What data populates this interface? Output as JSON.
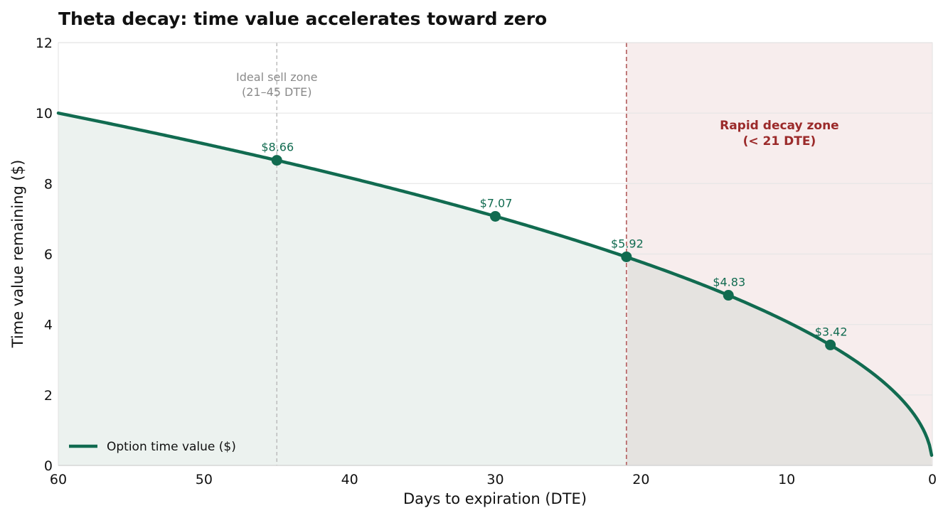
{
  "chart_data": {
    "type": "line",
    "title": "Theta decay: time value accelerates toward zero",
    "xlabel": "Days to expiration (DTE)",
    "ylabel": "Time value remaining ($)",
    "xlim": [
      60,
      0
    ],
    "ylim": [
      0,
      12
    ],
    "x_reversed": true,
    "x_ticks": [
      60,
      50,
      40,
      30,
      20,
      10,
      0
    ],
    "y_ticks": [
      0,
      2,
      4,
      6,
      8,
      10,
      12
    ],
    "grid": "horizontal",
    "legend_position": "bottom-left",
    "series": [
      {
        "name": "Option time value ($)",
        "color": "#116b50",
        "curve": "sqrt",
        "x": [
          60,
          45,
          30,
          21,
          14,
          7,
          0.05
        ],
        "y": [
          10.0,
          8.66,
          7.07,
          5.92,
          4.83,
          3.42,
          0.29
        ]
      }
    ],
    "markers": [
      {
        "x": 45,
        "y": 8.66,
        "label": "$8.66"
      },
      {
        "x": 30,
        "y": 7.07,
        "label": "$7.07"
      },
      {
        "x": 21,
        "y": 5.92,
        "label": "$5.92"
      },
      {
        "x": 14,
        "y": 4.83,
        "label": "$4.83"
      },
      {
        "x": 7,
        "y": 3.42,
        "label": "$3.42"
      }
    ],
    "annotations": {
      "ideal_zone": {
        "x": 45,
        "lines": [
          "Ideal sell zone",
          "(21–45 DTE)"
        ]
      },
      "rapid_zone": {
        "x_from": 21,
        "x_to": 0,
        "lines": [
          "Rapid decay zone",
          "(< 21 DTE)"
        ]
      }
    },
    "colors": {
      "line": "#116b50",
      "fill_safe": "#ecf2ef",
      "fill_rapid": "#e5e3e0",
      "rapid_bg": "#f7eded",
      "rapid_line": "#b86a6a",
      "rapid_text": "#9b2a2a",
      "ideal_line": "#bcbcbc",
      "grid": "#e6e6e6"
    }
  }
}
